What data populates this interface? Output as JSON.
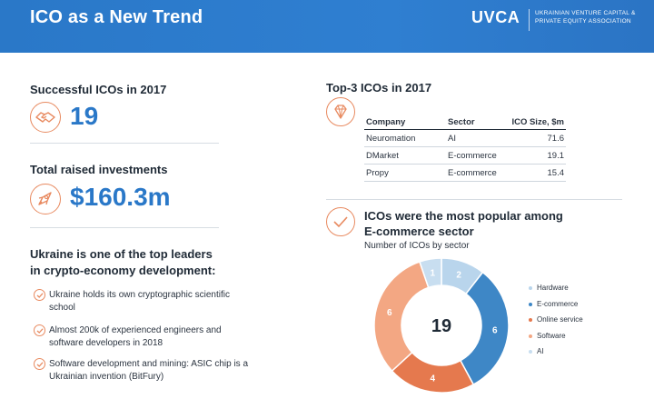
{
  "header": {
    "title": "ICO as a New Trend",
    "brand": "UVCA",
    "brand_sub": "Ukrainian Venture Capital & Private Equity Association"
  },
  "left": {
    "successful_title": "Successful ICOs  in 2017",
    "successful_value": "19",
    "raised_title": "Total raised investments",
    "raised_value": "$160.3m",
    "ukraine_title_1": "Ukraine is one of the top leaders",
    "ukraine_title_2": "in crypto-economy development:",
    "bullets": [
      "Ukraine holds its own cryptographic scientific school",
      "Almost 200k of experienced engineers and software developers in 2018",
      "Software development and mining: ASIC chip is a Ukrainian invention (BitFury)"
    ]
  },
  "top3": {
    "title": "Top-3 ICOs in 2017",
    "columns": [
      "Company",
      "Sector",
      "ICO Size,  $m"
    ],
    "rows": [
      [
        "Neuromation",
        "AI",
        "71.6"
      ],
      [
        "DMarket",
        "E-commerce",
        "19.1"
      ],
      [
        "Propy",
        "E-commerce",
        "15.4"
      ]
    ]
  },
  "popular": {
    "title_1": "ICOs were the most popular among",
    "title_2": "E-commerce sector",
    "subtitle": "Number of ICOs by sector"
  },
  "icons": [
    "handshake-icon",
    "rocket-icon",
    "diamond-icon",
    "check-icon"
  ],
  "colors": {
    "header_blue": "#2a78c8",
    "accent_orange": "#e88a60"
  },
  "chart_data": {
    "type": "pie",
    "title": "Number of ICOs by sector",
    "center_label": "19",
    "categories": [
      "Hardware",
      "E-commerce",
      "Online service",
      "Software",
      "AI"
    ],
    "values": [
      2,
      6,
      4,
      6,
      1
    ],
    "labels": [
      "2",
      "6",
      "4",
      "6",
      "1"
    ],
    "colors": [
      "#b9d5ec",
      "#3e87c6",
      "#e5794e",
      "#f3a783",
      "#c8def0"
    ],
    "legend_position": "right"
  }
}
